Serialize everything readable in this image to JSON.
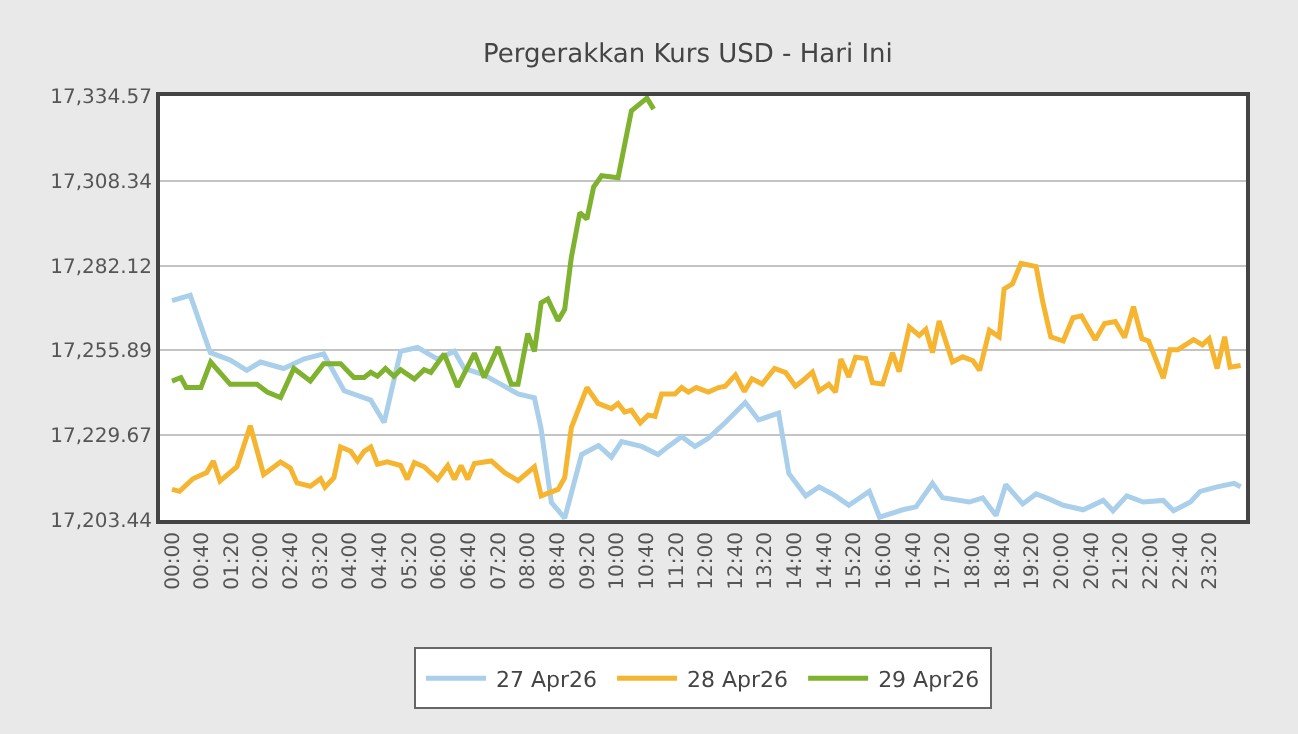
{
  "chart_data": {
    "type": "line",
    "title": "Pergerakkan Kurs USD - Hari Ini",
    "xlim": [
      -0.27,
      24.15
    ],
    "xticks": [
      {
        "value": 0,
        "label": "00:00"
      },
      {
        "value": 0.6667,
        "label": "00:40"
      },
      {
        "value": 1.3333,
        "label": "01:20"
      },
      {
        "value": 2,
        "label": "02:00"
      },
      {
        "value": 2.6667,
        "label": "02:40"
      },
      {
        "value": 3.3333,
        "label": "03:20"
      },
      {
        "value": 4,
        "label": "04:00"
      },
      {
        "value": 4.6667,
        "label": "04:40"
      },
      {
        "value": 5.3333,
        "label": "05:20"
      },
      {
        "value": 6,
        "label": "06:00"
      },
      {
        "value": 6.6667,
        "label": "06:40"
      },
      {
        "value": 7.3333,
        "label": "07:20"
      },
      {
        "value": 8,
        "label": "08:00"
      },
      {
        "value": 8.6667,
        "label": "08:40"
      },
      {
        "value": 9.3333,
        "label": "09:20"
      },
      {
        "value": 10,
        "label": "10:00"
      },
      {
        "value": 10.6667,
        "label": "10:40"
      },
      {
        "value": 11.3333,
        "label": "11:20"
      },
      {
        "value": 12,
        "label": "12:00"
      },
      {
        "value": 12.6667,
        "label": "12:40"
      },
      {
        "value": 13.3333,
        "label": "13:20"
      },
      {
        "value": 14,
        "label": "14:00"
      },
      {
        "value": 14.6667,
        "label": "14:40"
      },
      {
        "value": 15.3333,
        "label": "15:20"
      },
      {
        "value": 16,
        "label": "16:00"
      },
      {
        "value": 16.6667,
        "label": "16:40"
      },
      {
        "value": 17.3333,
        "label": "17:20"
      },
      {
        "value": 18,
        "label": "18:00"
      },
      {
        "value": 18.6667,
        "label": "18:40"
      },
      {
        "value": 19.3333,
        "label": "19:20"
      },
      {
        "value": 20,
        "label": "20:00"
      },
      {
        "value": 20.6667,
        "label": "20:40"
      },
      {
        "value": 21.3333,
        "label": "21:20"
      },
      {
        "value": 22,
        "label": "22:00"
      },
      {
        "value": 22.6667,
        "label": "22:40"
      },
      {
        "value": 23.3333,
        "label": "23:20"
      }
    ],
    "ylim": [
      17203.44,
      17334.57
    ],
    "yticks": [
      {
        "value": 17203.44,
        "label": "17,203.44"
      },
      {
        "value": 17229.67,
        "label": "17,229.67"
      },
      {
        "value": 17255.89,
        "label": "17,255.89"
      },
      {
        "value": 17282.12,
        "label": "17,282.12"
      },
      {
        "value": 17308.34,
        "label": "17,308.34"
      },
      {
        "value": 17334.57,
        "label": "17,334.57"
      }
    ],
    "grid": "y",
    "legend": "bottom",
    "series": [
      {
        "name": "27 Apr26",
        "color": "#a9cfea",
        "x": [
          0,
          0.41,
          0.86,
          1.31,
          1.68,
          1.99,
          2.51,
          2.96,
          3.41,
          3.87,
          4.47,
          4.77,
          5.14,
          5.52,
          5.97,
          6.35,
          6.57,
          7.02,
          7.4,
          7.78,
          8.15,
          8.3,
          8.53,
          8.83,
          9.21,
          9.59,
          9.88,
          10.11,
          10.56,
          10.93,
          11.16,
          11.46,
          11.76,
          12.06,
          12.44,
          12.89,
          13.19,
          13.64,
          13.87,
          14.25,
          14.55,
          14.92,
          15.22,
          15.68,
          15.91,
          16.43,
          16.73,
          17.1,
          17.33,
          17.93,
          18.23,
          18.53,
          18.75,
          19.13,
          19.43,
          19.73,
          20.04,
          20.49,
          20.94,
          21.16,
          21.47,
          21.84,
          22.29,
          22.52,
          22.9,
          23.12,
          23.5,
          23.88,
          24.03
        ],
        "values": [
          17271.3,
          17272.9,
          17255.2,
          17252.9,
          17249.7,
          17252.3,
          17250.3,
          17253.2,
          17254.8,
          17243.4,
          17240.5,
          17233.6,
          17255.6,
          17256.8,
          17253.2,
          17255.6,
          17250.3,
          17248.3,
          17245.4,
          17242.4,
          17241.2,
          17231.6,
          17208.9,
          17204,
          17223.7,
          17226.5,
          17222.9,
          17227.7,
          17226.2,
          17223.7,
          17226.2,
          17229.2,
          17226.2,
          17228.7,
          17233.6,
          17239.8,
          17234.4,
          17236.5,
          17217.8,
          17210.9,
          17213.7,
          17210.9,
          17208,
          17212.3,
          17204.3,
          17206.6,
          17207.5,
          17214.8,
          17210.3,
          17209,
          17210.3,
          17204.8,
          17214.4,
          17208.4,
          17211.5,
          17209.9,
          17208,
          17206.6,
          17209.5,
          17206.3,
          17210.9,
          17209,
          17209.5,
          17206.3,
          17209,
          17212.3,
          17213.7,
          17214.8,
          17213.7
        ]
      },
      {
        "name": "28 Apr26",
        "color": "#f5b531",
        "x": [
          0,
          0.17,
          0.47,
          0.78,
          0.93,
          1.08,
          1.46,
          1.76,
          2.06,
          2.44,
          2.66,
          2.81,
          3.11,
          3.34,
          3.44,
          3.64,
          3.79,
          4.02,
          4.17,
          4.32,
          4.47,
          4.62,
          4.84,
          5.14,
          5.29,
          5.45,
          5.67,
          5.97,
          6.2,
          6.35,
          6.5,
          6.65,
          6.8,
          7.18,
          7.48,
          7.78,
          8.15,
          8.3,
          8.68,
          8.83,
          8.98,
          9.33,
          9.58,
          9.88,
          10.03,
          10.18,
          10.33,
          10.53,
          10.71,
          10.86,
          11.01,
          11.31,
          11.46,
          11.61,
          11.79,
          12.06,
          12.29,
          12.44,
          12.67,
          12.87,
          13.04,
          13.27,
          13.55,
          13.8,
          14.02,
          14.17,
          14.4,
          14.55,
          14.77,
          14.92,
          15.04,
          15.22,
          15.37,
          15.6,
          15.75,
          15.98,
          16.2,
          16.35,
          16.58,
          16.8,
          16.95,
          17.1,
          17.25,
          17.55,
          17.78,
          18.01,
          18.16,
          18.38,
          18.6,
          18.71,
          18.9,
          19.09,
          19.43,
          19.58,
          19.76,
          20.04,
          20.26,
          20.45,
          20.76,
          20.97,
          21.21,
          21.42,
          21.62,
          21.81,
          21.96,
          22.29,
          22.44,
          22.62,
          22.97,
          23.17,
          23.32,
          23.5,
          23.67,
          23.79,
          24.03
        ],
        "values": [
          17212.9,
          17212.3,
          17216.2,
          17218.1,
          17221.7,
          17215.5,
          17219.9,
          17232.6,
          17217.5,
          17221.4,
          17219.5,
          17214.9,
          17213.9,
          17216.2,
          17213.6,
          17216.5,
          17226,
          17224.7,
          17221.7,
          17224.7,
          17226,
          17220.7,
          17221.4,
          17220.3,
          17216,
          17221.2,
          17219.9,
          17216,
          17220.3,
          17216,
          17220.3,
          17216,
          17220.9,
          17221.7,
          17218.1,
          17215.6,
          17219.9,
          17210.9,
          17212.9,
          17216.5,
          17232,
          17244.4,
          17239.5,
          17237.9,
          17239.5,
          17236.8,
          17237.4,
          17233.5,
          17235.9,
          17235.5,
          17242.4,
          17242.4,
          17244.4,
          17243,
          17244.4,
          17243,
          17244.4,
          17244.8,
          17248.3,
          17243.2,
          17247.1,
          17245.5,
          17250.3,
          17249,
          17244.8,
          17246.4,
          17249.2,
          17243.4,
          17245.4,
          17243,
          17253.2,
          17247.7,
          17253.8,
          17253.4,
          17245.9,
          17245.5,
          17255.2,
          17249.3,
          17263.1,
          17260.5,
          17262.4,
          17255.2,
          17265,
          17252.3,
          17253.9,
          17252.7,
          17249.7,
          17262.1,
          17260.1,
          17274.9,
          17276.5,
          17282.8,
          17281.8,
          17270.9,
          17260.1,
          17258.8,
          17266,
          17266.6,
          17259.2,
          17264.2,
          17264.8,
          17259.9,
          17269.4,
          17259.5,
          17258.8,
          17247.3,
          17256.1,
          17256.1,
          17259.2,
          17257.6,
          17259.5,
          17250.3,
          17260.1,
          17250.7,
          17251.2
        ]
      },
      {
        "name": "29 Apr26",
        "color": "#7fb22e",
        "x": [
          0,
          0.2,
          0.32,
          0.65,
          0.87,
          1.31,
          1.61,
          1.91,
          2.14,
          2.44,
          2.74,
          3.11,
          3.41,
          3.79,
          4.09,
          4.32,
          4.47,
          4.62,
          4.8,
          4.99,
          5.14,
          5.45,
          5.67,
          5.82,
          6.12,
          6.42,
          6.8,
          7.02,
          7.33,
          7.63,
          7.78,
          8,
          8.15,
          8.3,
          8.45,
          8.68,
          8.83,
          8.98,
          9.17,
          9.33,
          9.48,
          9.66,
          10.03,
          10.33,
          10.68,
          10.83
        ],
        "values": [
          17246.4,
          17247.5,
          17244.4,
          17244.4,
          17252.3,
          17245.4,
          17245.4,
          17245.4,
          17243,
          17241.3,
          17250.3,
          17246.4,
          17251.8,
          17251.8,
          17247.5,
          17247.5,
          17249.1,
          17247.9,
          17250.3,
          17247.9,
          17249.9,
          17247,
          17249.9,
          17249.1,
          17254.8,
          17244.6,
          17255,
          17247.5,
          17256.9,
          17245.4,
          17245.4,
          17261.1,
          17255.6,
          17270.6,
          17271.8,
          17265.1,
          17268.6,
          17284.7,
          17298.5,
          17296.5,
          17306.4,
          17309.9,
          17309.3,
          17330,
          17333.9,
          17330.5
        ]
      }
    ]
  }
}
